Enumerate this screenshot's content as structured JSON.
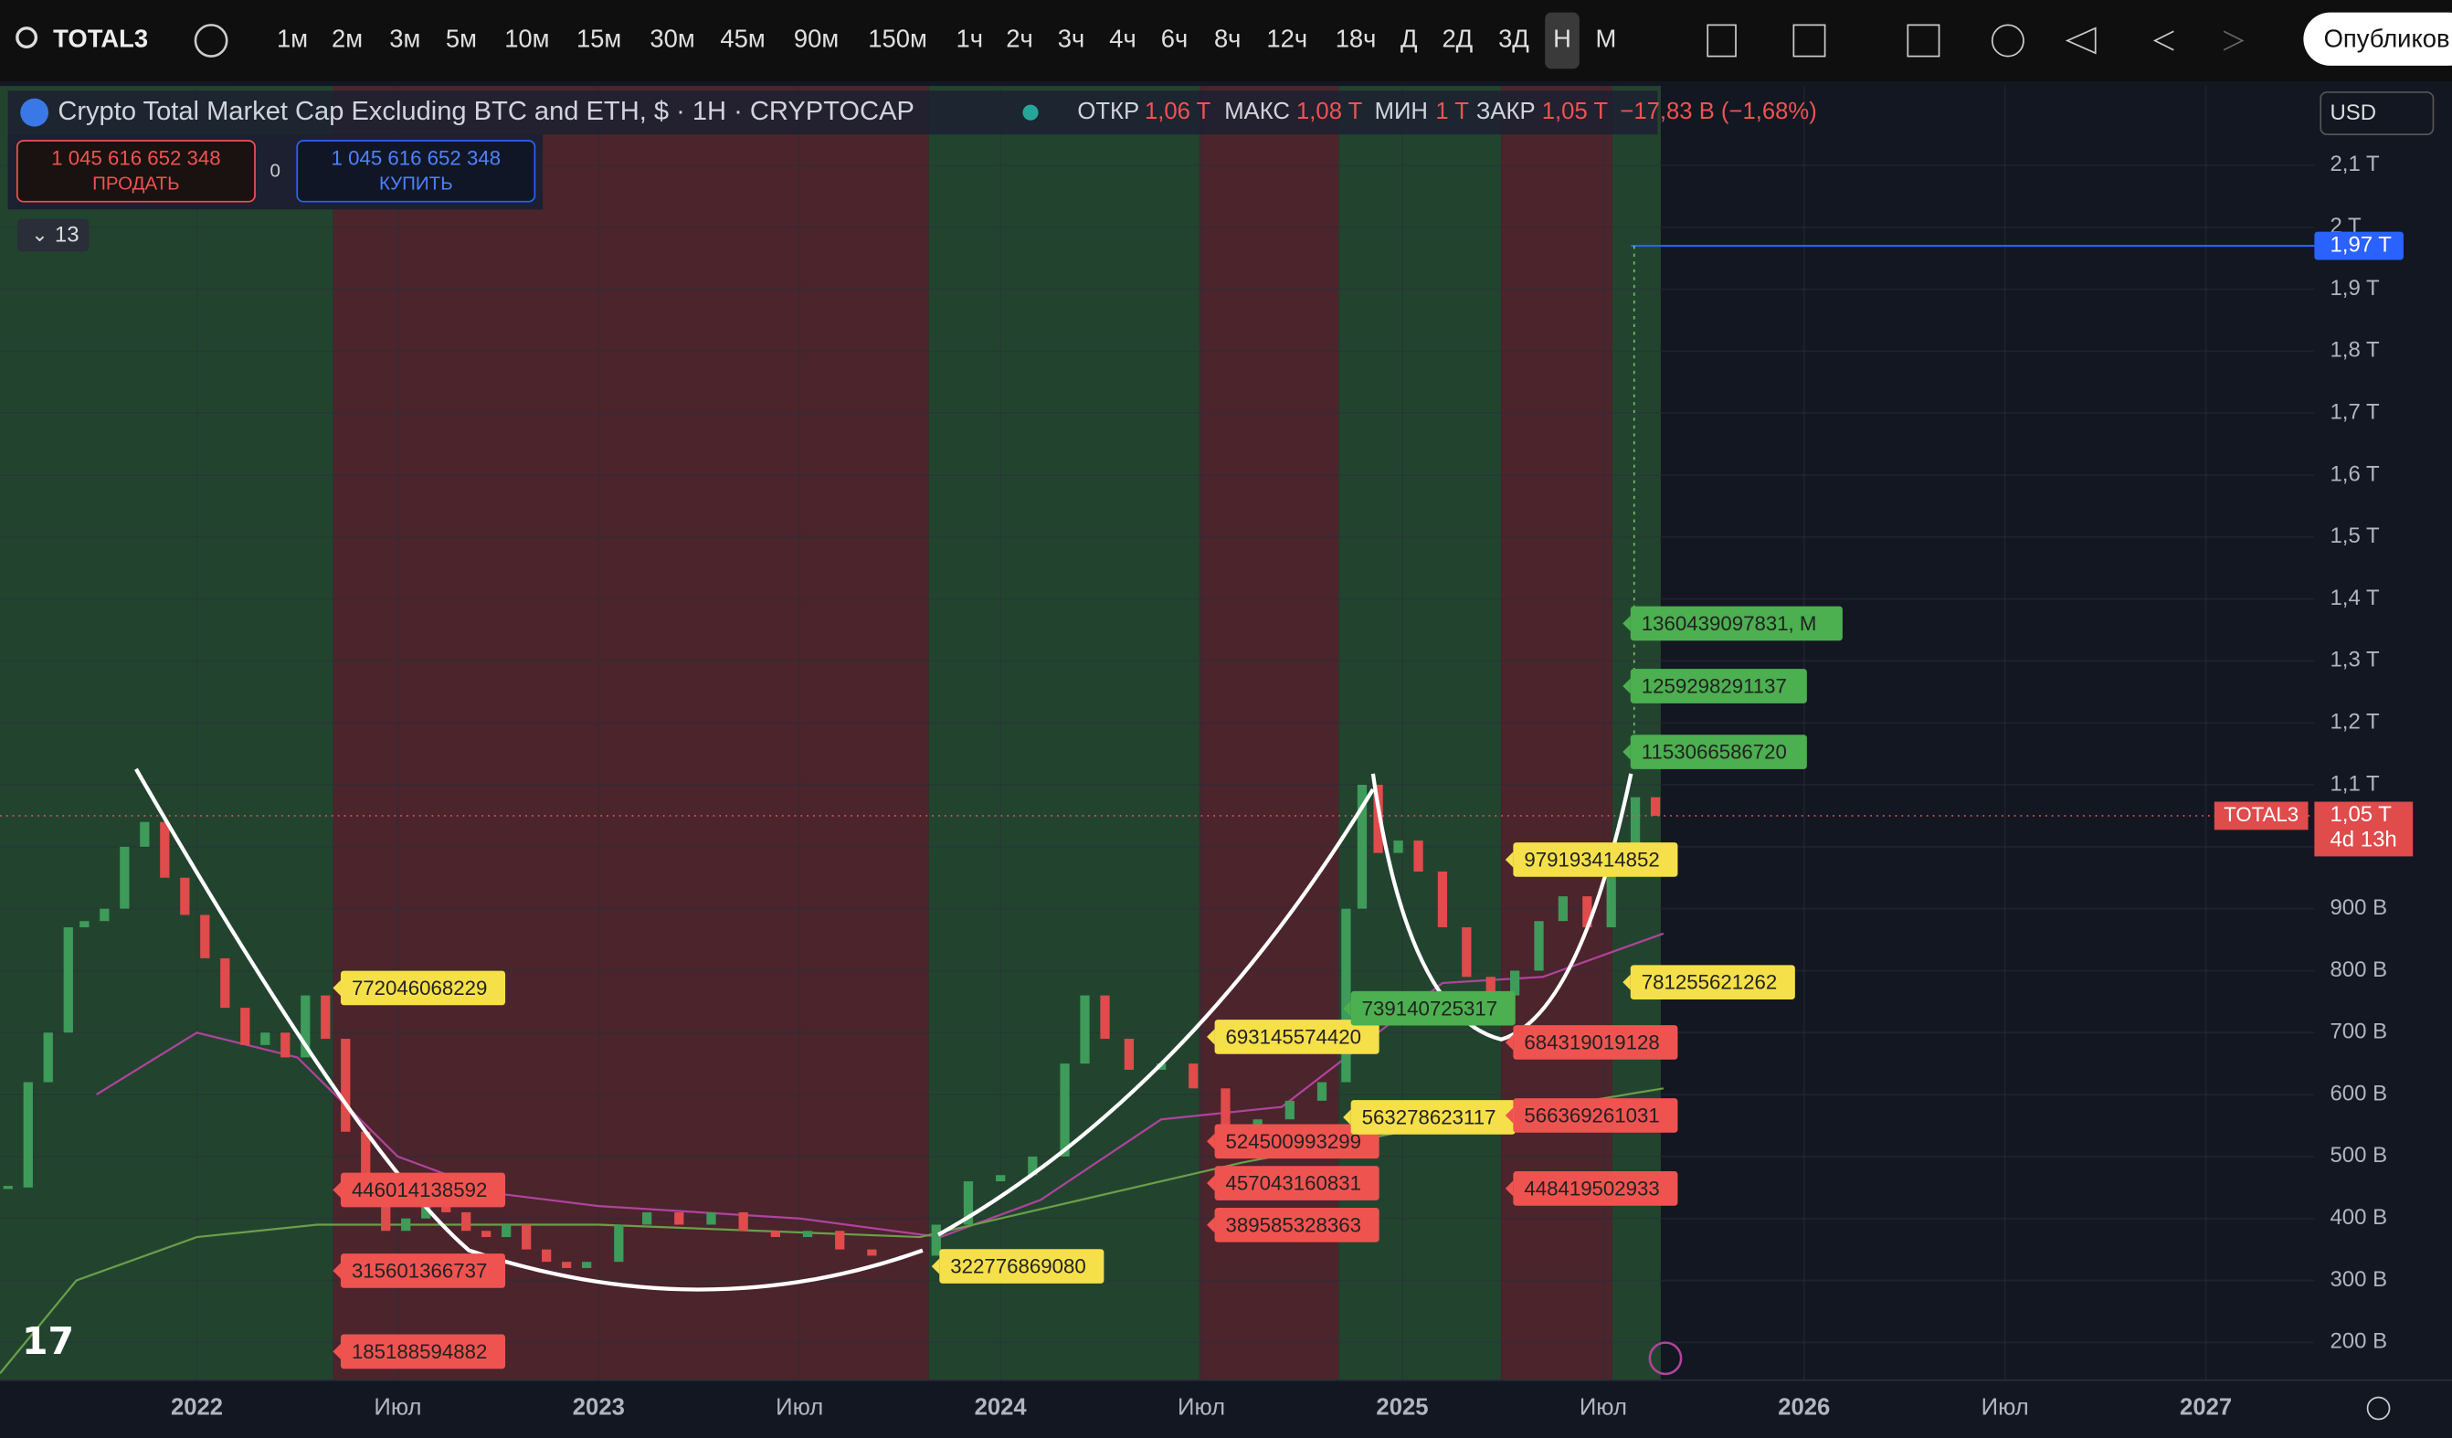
{
  "toolbar": {
    "symbol": "TOTAL3",
    "intervals": [
      "1м",
      "2м",
      "3м",
      "5м",
      "10м",
      "15м",
      "30м",
      "45м",
      "90м",
      "150м",
      "1ч",
      "2ч",
      "3ч",
      "4ч",
      "6ч",
      "8ч",
      "12ч",
      "18ч",
      "Д",
      "2Д",
      "3Д",
      "Н",
      "М"
    ],
    "publish": "Опубликов"
  },
  "legend": {
    "title": "Crypto Total Market Cap Excluding BTC and ETH, $ · 1H · CRYPTOCAP",
    "open_label": "ОТКР",
    "open": "1,06 T",
    "high_label": "МАКС",
    "high": "1,08 T",
    "low_label": "МИН",
    "low": "1 T",
    "close_label": "ЗАКР",
    "close": "1,05 T",
    "change": "−17,83 B (−1,68%)"
  },
  "trade": {
    "sell_price": "1 045 616 652 348",
    "sell": "ПРОДАТЬ",
    "spread": "0",
    "buy_price": "1 045 616 652 348",
    "buy": "КУПИТЬ"
  },
  "indicators_count": "13",
  "currency": "USD",
  "chart_data": {
    "type": "candlestick",
    "x": [
      2021.53,
      2021.58,
      2021.63,
      2021.68,
      2021.72,
      2021.77,
      2021.82,
      2021.87,
      2021.92,
      2021.97,
      2022.02,
      2022.07,
      2022.12,
      2022.17,
      2022.22,
      2022.27,
      2022.32,
      2022.37,
      2022.42,
      2022.47,
      2022.52,
      2022.57,
      2022.62,
      2022.67,
      2022.72,
      2022.77,
      2022.82,
      2022.87,
      2022.92,
      2022.97,
      2023.05,
      2023.12,
      2023.2,
      2023.28,
      2023.36,
      2023.44,
      2023.52,
      2023.6,
      2023.68,
      2023.76,
      2023.84,
      2023.92,
      2024.0,
      2024.08,
      2024.16,
      2024.21,
      2024.26,
      2024.32,
      2024.4,
      2024.48,
      2024.56,
      2024.64,
      2024.72,
      2024.8,
      2024.86,
      2024.9,
      2024.94,
      2024.99,
      2025.04,
      2025.1,
      2025.16,
      2025.22,
      2025.28,
      2025.34,
      2025.4,
      2025.46,
      2025.52,
      2025.58,
      2025.63
    ],
    "values": [
      450,
      620,
      700,
      870,
      880,
      900,
      1000,
      1040,
      950,
      890,
      820,
      740,
      680,
      700,
      660,
      760,
      690,
      540,
      440,
      380,
      400,
      420,
      410,
      380,
      370,
      390,
      350,
      330,
      320,
      330,
      390,
      410,
      390,
      410,
      380,
      370,
      380,
      350,
      340,
      340,
      390,
      460,
      470,
      500,
      650,
      760,
      690,
      640,
      650,
      610,
      540,
      560,
      590,
      620,
      900,
      1100,
      990,
      1010,
      960,
      870,
      790,
      760,
      800,
      880,
      920,
      870,
      1000,
      1080,
      1050
    ],
    "colors": {
      "up": "#3e9b5a",
      "down": "#e04b4b"
    },
    "xlim": [
      2021.51,
      2027.27
    ],
    "xticks": [
      {
        "value": 2022,
        "label": "2022"
      },
      {
        "value": 2022.5,
        "label": "Июл"
      },
      {
        "value": 2023,
        "label": "2023"
      },
      {
        "value": 2023.5,
        "label": "Июл"
      },
      {
        "value": 2024,
        "label": "2024"
      },
      {
        "value": 2024.5,
        "label": "Июл"
      },
      {
        "value": 2025,
        "label": "2025"
      },
      {
        "value": 2025.5,
        "label": "Июл"
      },
      {
        "value": 2026,
        "label": "2026"
      },
      {
        "value": 2026.5,
        "label": "Июл"
      },
      {
        "value": 2027,
        "label": "2027"
      }
    ],
    "ylim": [
      139,
      2228
    ],
    "yticks": [
      {
        "value": 200,
        "label": "200 B"
      },
      {
        "value": 300,
        "label": "300 B"
      },
      {
        "value": 400,
        "label": "400 B"
      },
      {
        "value": 500,
        "label": "500 B"
      },
      {
        "value": 600,
        "label": "600 B"
      },
      {
        "value": 700,
        "label": "700 B"
      },
      {
        "value": 800,
        "label": "800 B"
      },
      {
        "value": 900,
        "label": "900 B"
      },
      {
        "value": 1000,
        "label": "1 T"
      },
      {
        "value": 1100,
        "label": "1,1 T"
      },
      {
        "value": 1200,
        "label": "1,2 T"
      },
      {
        "value": 1300,
        "label": "1,3 T"
      },
      {
        "value": 1400,
        "label": "1,4 T"
      },
      {
        "value": 1500,
        "label": "1,5 T"
      },
      {
        "value": 1600,
        "label": "1,6 T"
      },
      {
        "value": 1700,
        "label": "1,7 T"
      },
      {
        "value": 1800,
        "label": "1,8 T"
      },
      {
        "value": 1900,
        "label": "1,9 T"
      },
      {
        "value": 2000,
        "label": "2 T"
      },
      {
        "value": 2100,
        "label": "2,1 T"
      }
    ],
    "moving_averages": [
      {
        "color": "#b0439c",
        "x": [
          2021.75,
          2022.0,
          2022.25,
          2022.5,
          2022.75,
          2023.0,
          2023.5,
          2023.85,
          2024.1,
          2024.4,
          2024.7,
          2024.9,
          2025.1,
          2025.35,
          2025.65
        ],
        "values": [
          600,
          700,
          660,
          500,
          440,
          420,
          400,
          370,
          430,
          560,
          580,
          680,
          780,
          790,
          860
        ]
      },
      {
        "color": "#6a9f4a",
        "x": [
          2021.51,
          2021.7,
          2022.0,
          2022.3,
          2023.0,
          2023.8,
          2024.2,
          2024.6,
          2025.0,
          2025.65
        ],
        "values": [
          150,
          300,
          370,
          390,
          390,
          370,
          430,
          490,
          540,
          610
        ]
      }
    ],
    "levels": [
      {
        "x": 2022.358,
        "value": 772.046068229,
        "label": "772046068229",
        "color": "#f5e04a"
      },
      {
        "x": 2022.358,
        "value": 446.014138592,
        "label": "446014138592",
        "color": "#ef5350"
      },
      {
        "x": 2022.358,
        "value": 315.601366737,
        "label": "315601366737",
        "color": "#ef5350"
      },
      {
        "x": 2022.358,
        "value": 185.188594882,
        "label": "185188594882",
        "color": "#ef5350"
      },
      {
        "x": 2023.848,
        "value": 322.77686908,
        "label": "322776869080",
        "color": "#f5e04a"
      },
      {
        "x": 2024.533,
        "value": 693.14557442,
        "label": "693145574420",
        "color": "#f5e04a"
      },
      {
        "x": 2024.533,
        "value": 524.500993299,
        "label": "524500993299",
        "color": "#ef5350"
      },
      {
        "x": 2024.533,
        "value": 457.043160831,
        "label": "457043160831",
        "color": "#ef5350"
      },
      {
        "x": 2024.533,
        "value": 389.585328363,
        "label": "389585328363",
        "color": "#ef5350"
      },
      {
        "x": 2024.872,
        "value": 739.140725317,
        "label": "739140725317",
        "color": "#4caf50"
      },
      {
        "x": 2024.872,
        "value": 563.278623117,
        "label": "563278623117",
        "color": "#f5e04a"
      },
      {
        "x": 2025.276,
        "value": 979.193414852,
        "label": "979193414852",
        "color": "#f5e04a"
      },
      {
        "x": 2025.276,
        "value": 684.319019128,
        "label": "684319019128",
        "color": "#ef5350"
      },
      {
        "x": 2025.276,
        "value": 566.369261031,
        "label": "566369261031",
        "color": "#ef5350"
      },
      {
        "x": 2025.276,
        "value": 448.419502933,
        "label": "448419502933",
        "color": "#ef5350"
      },
      {
        "x": 2025.568,
        "value": 1360.439097831,
        "label": "1360439097831, M",
        "color": "#4caf50"
      },
      {
        "x": 2025.568,
        "value": 1259.298291137,
        "label": "1259298291137",
        "color": "#4caf50"
      },
      {
        "x": 2025.568,
        "value": 1153.06658672,
        "label": "1153066586720",
        "color": "#4caf50"
      },
      {
        "x": 2025.568,
        "value": 781.255621262,
        "label": "781255621262",
        "color": "#f5e04a"
      }
    ],
    "last_price": {
      "value": 1050,
      "label": "1,05 T",
      "symbol": "TOTAL3",
      "countdown": "4d 13h"
    },
    "target": {
      "value": 1970,
      "label": "1,97 T"
    }
  }
}
